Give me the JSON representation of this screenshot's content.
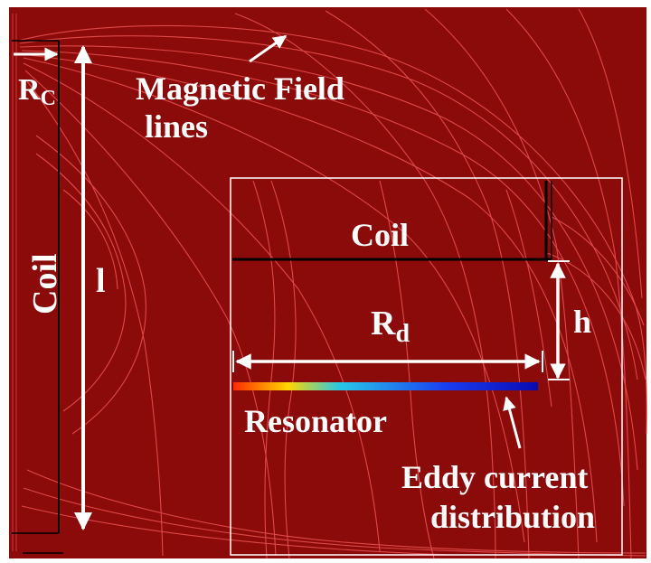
{
  "labels": {
    "rc_main": "R",
    "rc_sub": "C",
    "magnetic_field": "Magnetic Field",
    "lines": "lines",
    "coil_vertical": "Coil",
    "length": "l",
    "coil_inset": "Coil",
    "rd_main": "R",
    "rd_sub": "d",
    "height": "h",
    "resonator": "Resonator",
    "eddy_line1": "Eddy current",
    "eddy_line2": "distribution"
  },
  "colors": {
    "background": "#8b0a0a",
    "field_lines": "#e85050",
    "text": "#ffffff",
    "coil_line": "#000000",
    "resonator_gradient": [
      "#ff2a00",
      "#ffd800",
      "#27c8e8",
      "#1a3df0",
      "#0a0ab0"
    ]
  }
}
